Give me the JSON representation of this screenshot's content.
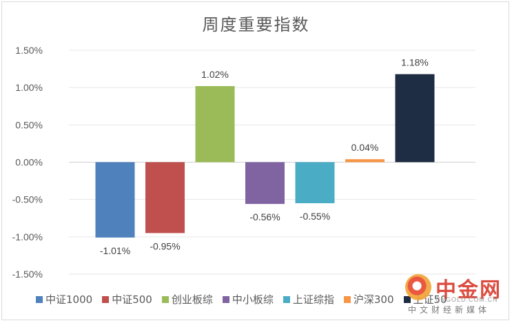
{
  "chart_data": {
    "type": "bar",
    "title": "周度重要指数",
    "categories": [
      "中证1000",
      "中证500",
      "创业板综",
      "中小板综",
      "上证综指",
      "沪深300",
      "上证50"
    ],
    "values": [
      -1.01,
      -0.95,
      1.02,
      -0.56,
      -0.55,
      0.04,
      1.18
    ],
    "data_labels": [
      "-1.01%",
      "-0.95%",
      "1.02%",
      "-0.56%",
      "-0.55%",
      "0.04%",
      "1.18%"
    ],
    "colors": [
      "#4f81bd",
      "#c0504d",
      "#9bbb59",
      "#8064a2",
      "#4bacc6",
      "#f79646",
      "#1f2d44"
    ],
    "ylim": [
      -1.5,
      1.5
    ],
    "yticks": [
      1.5,
      1.0,
      0.5,
      0.0,
      -0.5,
      -1.0,
      -1.5
    ],
    "ytick_labels": [
      "1.50%",
      "1.00%",
      "0.50%",
      "0.00%",
      "-0.50%",
      "-1.00%",
      "-1.50%"
    ],
    "grid": true,
    "legend_position": "bottom",
    "xlabel": "",
    "ylabel": ""
  },
  "watermark": {
    "brand": "中金网",
    "url": "CNGOLD.COM.CN",
    "sub": "中文财经新媒体"
  }
}
